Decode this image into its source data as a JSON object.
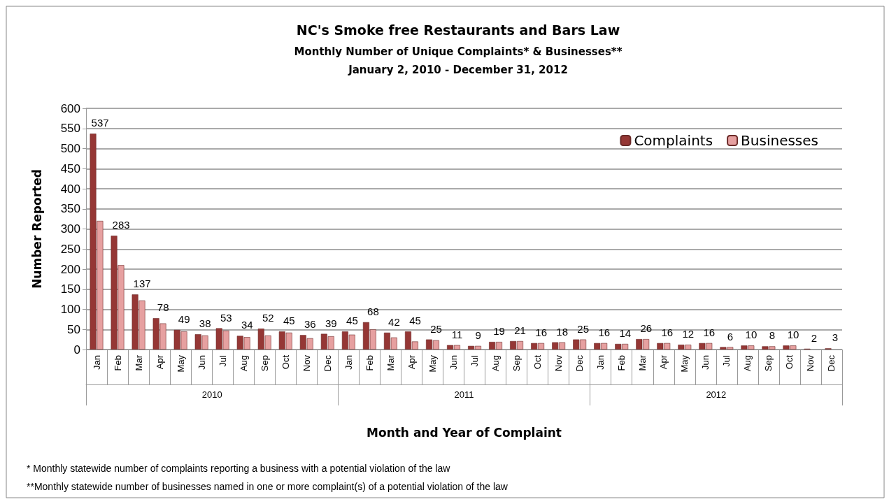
{
  "chart_data": {
    "type": "bar",
    "title": "NC's Smoke free Restaurants and Bars Law",
    "subtitle": "Monthly Number of Unique Complaints* & Businesses**\nJanuary 2, 2010 - December 31, 2012",
    "xlabel": "Month and Year of Complaint",
    "ylabel": "Number Reported",
    "categories": [
      "Jan",
      "Feb",
      "Mar",
      "Apr",
      "May",
      "Jun",
      "Jul",
      "Aug",
      "Sep",
      "Oct",
      "Nov",
      "Dec",
      "Jan",
      "Feb",
      "Mar",
      "Apr",
      "May",
      "Jun",
      "Jul",
      "Aug",
      "Sep",
      "Oct",
      "Nov",
      "Dec",
      "Jan",
      "Feb",
      "Mar",
      "Apr",
      "May",
      "Jun",
      "Jul",
      "Aug",
      "Sep",
      "Oct",
      "Nov",
      "Dec"
    ],
    "series": [
      {
        "name": "Complaints",
        "color": "#953735",
        "values": [
          537,
          283,
          137,
          78,
          49,
          38,
          53,
          34,
          52,
          45,
          36,
          39,
          45,
          68,
          42,
          45,
          25,
          11,
          9,
          19,
          21,
          16,
          18,
          25,
          16,
          14,
          26,
          16,
          12,
          16,
          6,
          10,
          8,
          10,
          2,
          3
        ],
        "value_labels": [
          "537",
          "283",
          "137",
          "78",
          "49",
          "38",
          "53",
          "34",
          "52",
          "45",
          "36",
          "39",
          "45",
          "68",
          "42",
          "45",
          "25",
          "11",
          "9",
          "19",
          "21",
          "16",
          "18",
          "25",
          "16",
          "14",
          "26",
          "16",
          "12",
          "16",
          "6",
          "10",
          "8",
          "10",
          "2",
          "3"
        ]
      },
      {
        "name": "Businesses",
        "color": "#e6a0a0",
        "values": [
          320,
          210,
          122,
          65,
          45,
          35,
          47,
          31,
          35,
          42,
          28,
          33,
          37,
          50,
          30,
          20,
          23,
          11,
          9,
          19,
          21,
          16,
          18,
          25,
          16,
          14,
          26,
          16,
          12,
          16,
          6,
          10,
          8,
          10,
          null,
          null
        ]
      }
    ],
    "annotations": [
      "2010",
      "2011",
      "2012",
      "* Monthly statewide number of complaints reporting a business with a potential violation of the law",
      "**Monthly statewide number of businesses named in one or more complaint(s) of a potential violation of the law"
    ],
    "ylim": [
      0,
      600
    ],
    "yticks": [
      0,
      50,
      100,
      150,
      200,
      250,
      300,
      350,
      400,
      450,
      500,
      550,
      600
    ],
    "grid": "y",
    "legend": "top right"
  }
}
